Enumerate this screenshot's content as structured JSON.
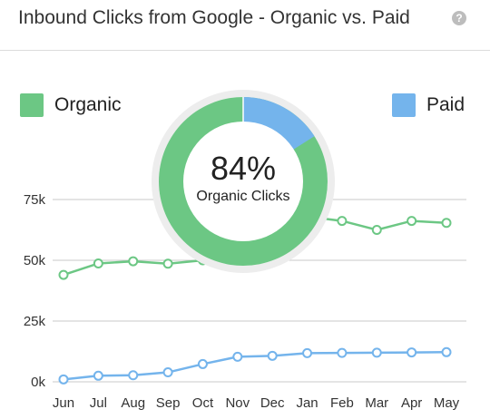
{
  "header": {
    "title": "Inbound Clicks from Google - Organic vs. Paid",
    "help_glyph": "?"
  },
  "legend": {
    "organic_label": "Organic",
    "paid_label": "Paid"
  },
  "donut": {
    "percent_label": "84%",
    "caption": "Organic Clicks"
  },
  "colors": {
    "organic": "#6cc784",
    "paid": "#74b4ec",
    "grid": "#c8c8c8",
    "axis_text": "#333333"
  },
  "chart_data": {
    "type": "line",
    "title": "Inbound Clicks from Google - Organic vs. Paid",
    "categories": [
      "Jun",
      "Jul",
      "Aug",
      "Sep",
      "Oct",
      "Nov",
      "Dec",
      "Jan",
      "Feb",
      "Mar",
      "Apr",
      "May"
    ],
    "series": [
      {
        "name": "Organic",
        "values": [
          44,
          48.7,
          49.6,
          48.6,
          50,
          58,
          63,
          68,
          66.2,
          62.5,
          66.2,
          65.4
        ]
      },
      {
        "name": "Paid",
        "values": [
          1,
          2.5,
          2.7,
          3.9,
          7.3,
          10.3,
          10.7,
          11.8,
          11.9,
          12,
          12.1,
          12.2
        ]
      }
    ],
    "y_ticks": [
      0,
      25,
      50,
      75
    ],
    "y_tick_labels": [
      "0k",
      "25k",
      "50k",
      "75k"
    ],
    "ylim": [
      0,
      75
    ],
    "grid": true,
    "legend_position": "top",
    "donut": {
      "organic_share": 84,
      "paid_share": 16
    }
  }
}
